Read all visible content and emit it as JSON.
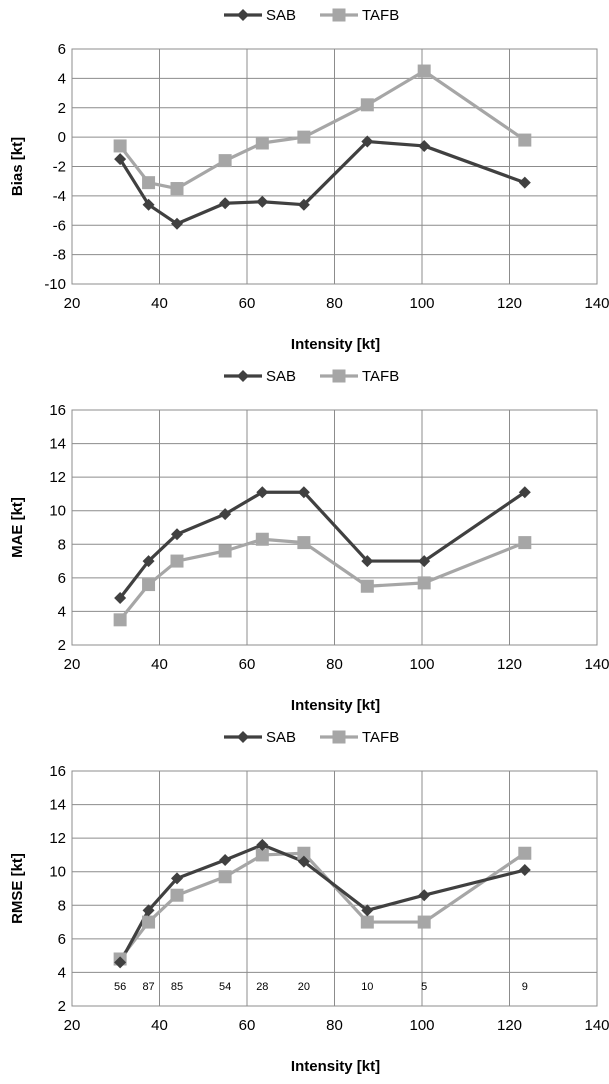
{
  "chart_data": [
    {
      "type": "line",
      "title": "",
      "xlabel": "Intensity [kt]",
      "ylabel": "Bias [kt]",
      "xlim": [
        20,
        140
      ],
      "ylim": [
        -10,
        6
      ],
      "xticks": [
        "20",
        "40",
        "60",
        "80",
        "100",
        "120",
        "140"
      ],
      "yticks": [
        "-10",
        "-8",
        "-6",
        "-4",
        "-2",
        "0",
        "2",
        "4",
        "6"
      ],
      "x_tick_values": [
        20,
        40,
        60,
        80,
        100,
        120,
        140
      ],
      "y_tick_values": [
        -10,
        -8,
        -6,
        -4,
        -2,
        0,
        2,
        4,
        6
      ],
      "grid": true,
      "legend": "top-center",
      "series": [
        {
          "name": "SAB",
          "marker": "diamond",
          "color": "#404040",
          "x": [
            31,
            37.5,
            44,
            55,
            63.5,
            73,
            87.5,
            100.5,
            123.5
          ],
          "y": [
            -1.5,
            -4.6,
            -5.9,
            -4.5,
            -4.4,
            -4.6,
            -0.3,
            -0.6,
            -3.1
          ]
        },
        {
          "name": "TAFB",
          "marker": "square",
          "color": "#a6a6a6",
          "x": [
            31,
            37.5,
            44,
            55,
            63.5,
            73,
            87.5,
            100.5,
            123.5
          ],
          "y": [
            -0.6,
            -3.1,
            -3.5,
            -1.6,
            -0.4,
            0.0,
            2.2,
            4.5,
            -0.2
          ]
        }
      ],
      "annotations": []
    },
    {
      "type": "line",
      "title": "",
      "xlabel": "Intensity [kt]",
      "ylabel": "MAE [kt]",
      "xlim": [
        20,
        140
      ],
      "ylim": [
        2,
        16
      ],
      "xticks": [
        "20",
        "40",
        "60",
        "80",
        "100",
        "120",
        "140"
      ],
      "yticks": [
        "2",
        "4",
        "6",
        "8",
        "10",
        "12",
        "14",
        "16"
      ],
      "x_tick_values": [
        20,
        40,
        60,
        80,
        100,
        120,
        140
      ],
      "y_tick_values": [
        2,
        4,
        6,
        8,
        10,
        12,
        14,
        16
      ],
      "grid": true,
      "legend": "top-center",
      "series": [
        {
          "name": "SAB",
          "marker": "diamond",
          "color": "#404040",
          "x": [
            31,
            37.5,
            44,
            55,
            63.5,
            73,
            87.5,
            100.5,
            123.5
          ],
          "y": [
            4.8,
            7.0,
            8.6,
            9.8,
            11.1,
            11.1,
            7.0,
            7.0,
            11.1
          ]
        },
        {
          "name": "TAFB",
          "marker": "square",
          "color": "#a6a6a6",
          "x": [
            31,
            37.5,
            44,
            55,
            63.5,
            73,
            87.5,
            100.5,
            123.5
          ],
          "y": [
            3.5,
            5.6,
            7.0,
            7.6,
            8.3,
            8.1,
            5.5,
            5.7,
            8.1
          ]
        }
      ],
      "annotations": []
    },
    {
      "type": "line",
      "title": "",
      "xlabel": "Intensity [kt]",
      "ylabel": "RMSE [kt]",
      "xlim": [
        20,
        140
      ],
      "ylim": [
        2,
        16
      ],
      "xticks": [
        "20",
        "40",
        "60",
        "80",
        "100",
        "120",
        "140"
      ],
      "yticks": [
        "2",
        "4",
        "6",
        "8",
        "10",
        "12",
        "14",
        "16"
      ],
      "x_tick_values": [
        20,
        40,
        60,
        80,
        100,
        120,
        140
      ],
      "y_tick_values": [
        2,
        4,
        6,
        8,
        10,
        12,
        14,
        16
      ],
      "grid": true,
      "legend": "top-center",
      "series": [
        {
          "name": "SAB",
          "marker": "diamond",
          "color": "#404040",
          "x": [
            31,
            37.5,
            44,
            55,
            63.5,
            73,
            87.5,
            100.5,
            123.5
          ],
          "y": [
            4.6,
            7.7,
            9.6,
            10.7,
            11.6,
            10.6,
            7.7,
            8.6,
            10.1
          ]
        },
        {
          "name": "TAFB",
          "marker": "square",
          "color": "#a6a6a6",
          "x": [
            31,
            37.5,
            44,
            55,
            63.5,
            73,
            87.5,
            100.5,
            123.5
          ],
          "y": [
            4.8,
            7.0,
            8.6,
            9.7,
            11.0,
            11.1,
            7.0,
            7.0,
            11.1
          ]
        }
      ],
      "annotations": [
        {
          "text": "56",
          "x": 31,
          "y": 3.2
        },
        {
          "text": "87",
          "x": 37.5,
          "y": 3.2
        },
        {
          "text": "85",
          "x": 44,
          "y": 3.2
        },
        {
          "text": "54",
          "x": 55,
          "y": 3.2
        },
        {
          "text": "28",
          "x": 63.5,
          "y": 3.2
        },
        {
          "text": "20",
          "x": 73,
          "y": 3.2
        },
        {
          "text": "10",
          "x": 87.5,
          "y": 3.2
        },
        {
          "text": "5",
          "x": 100.5,
          "y": 3.2
        },
        {
          "text": "9",
          "x": 123.5,
          "y": 3.2
        }
      ]
    }
  ]
}
